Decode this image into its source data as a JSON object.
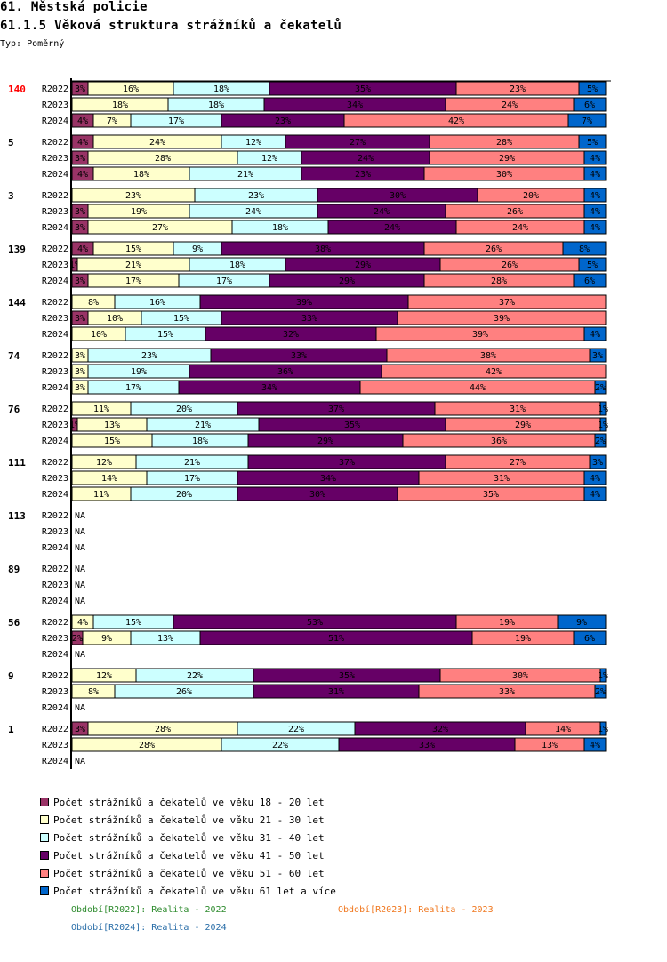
{
  "header": {
    "title": "61. Městská policie",
    "subtitle": "61.1.5 Věková struktura strážníků a čekatelů",
    "type_label": "Typ: Poměrný"
  },
  "periods": [
    {
      "code": "R2022",
      "label": "Období[R2022]: Realita - 2022",
      "color": "#2e8b2e"
    },
    {
      "code": "R2023",
      "label": "Období[R2023]: Realita - 2023",
      "color": "#f07820"
    },
    {
      "code": "R2024",
      "label": "Období[R2024]: Realita - 2024",
      "color": "#2a6ea8"
    }
  ],
  "chart_data": {
    "type": "bar",
    "orientation": "horizontal",
    "stacked": true,
    "normalized": true,
    "title": "61.1.5 Věková struktura strážníků a čekatelů",
    "xlim": [
      0,
      100
    ],
    "legend_position": "bottom-left",
    "series": [
      {
        "name": "Počet strážníků a čekatelů ve věku 18 - 20 let",
        "color": "#993366"
      },
      {
        "name": "Počet strážníků a čekatelů ve věku 21 - 30 let",
        "color": "#ffffcc"
      },
      {
        "name": "Počet strážníků a čekatelů ve věku 31 - 40 let",
        "color": "#ccffff"
      },
      {
        "name": "Počet strážníků a čekatelů ve věku 41 - 50 let",
        "color": "#660066"
      },
      {
        "name": "Počet strážníků a čekatelů ve věku 51 - 60 let",
        "color": "#ff8080"
      },
      {
        "name": "Počet strážníků a čekatelů ve věku 61 let a více",
        "color": "#0066cc"
      }
    ],
    "groups": [
      {
        "id": "140",
        "highlight": true,
        "rows": [
          {
            "period": "R2022",
            "values": [
              3,
              16,
              18,
              35,
              23,
              5
            ]
          },
          {
            "period": "R2023",
            "values": [
              0,
              18,
              18,
              34,
              24,
              6
            ]
          },
          {
            "period": "R2024",
            "values": [
              4,
              7,
              17,
              23,
              42,
              7
            ]
          }
        ]
      },
      {
        "id": "5",
        "rows": [
          {
            "period": "R2022",
            "values": [
              4,
              24,
              12,
              27,
              28,
              5
            ]
          },
          {
            "period": "R2023",
            "values": [
              3,
              28,
              12,
              24,
              29,
              4
            ]
          },
          {
            "period": "R2024",
            "values": [
              4,
              18,
              21,
              23,
              30,
              4
            ]
          }
        ]
      },
      {
        "id": "3",
        "rows": [
          {
            "period": "R2022",
            "values": [
              0,
              23,
              23,
              30,
              20,
              4
            ]
          },
          {
            "period": "R2023",
            "values": [
              3,
              19,
              24,
              24,
              26,
              4
            ]
          },
          {
            "period": "R2024",
            "values": [
              3,
              27,
              18,
              24,
              24,
              4
            ]
          }
        ]
      },
      {
        "id": "139",
        "rows": [
          {
            "period": "R2022",
            "values": [
              4,
              15,
              9,
              38,
              26,
              8
            ]
          },
          {
            "period": "R2023",
            "values": [
              1,
              21,
              18,
              29,
              26,
              5
            ]
          },
          {
            "period": "R2024",
            "values": [
              3,
              17,
              17,
              29,
              28,
              6
            ]
          }
        ]
      },
      {
        "id": "144",
        "rows": [
          {
            "period": "R2022",
            "values": [
              0,
              8,
              16,
              39,
              37,
              0
            ]
          },
          {
            "period": "R2023",
            "values": [
              3,
              10,
              15,
              33,
              39,
              0
            ]
          },
          {
            "period": "R2024",
            "values": [
              0,
              10,
              15,
              32,
              39,
              4
            ]
          }
        ]
      },
      {
        "id": "74",
        "rows": [
          {
            "period": "R2022",
            "values": [
              0,
              3,
              23,
              33,
              38,
              3
            ]
          },
          {
            "period": "R2023",
            "values": [
              0,
              3,
              19,
              36,
              42,
              0
            ]
          },
          {
            "period": "R2024",
            "values": [
              0,
              3,
              17,
              34,
              44,
              2
            ]
          }
        ]
      },
      {
        "id": "76",
        "rows": [
          {
            "period": "R2022",
            "values": [
              0,
              11,
              20,
              37,
              31,
              1
            ]
          },
          {
            "period": "R2023",
            "values": [
              1,
              13,
              21,
              35,
              29,
              1
            ]
          },
          {
            "period": "R2024",
            "values": [
              0,
              15,
              18,
              29,
              36,
              2
            ]
          }
        ]
      },
      {
        "id": "111",
        "rows": [
          {
            "period": "R2022",
            "values": [
              0,
              12,
              21,
              37,
              27,
              3
            ]
          },
          {
            "period": "R2023",
            "values": [
              0,
              14,
              17,
              34,
              31,
              4
            ]
          },
          {
            "period": "R2024",
            "values": [
              0,
              11,
              20,
              30,
              35,
              4
            ]
          }
        ]
      },
      {
        "id": "113",
        "rows": [
          {
            "period": "R2022",
            "values": null
          },
          {
            "period": "R2023",
            "values": null
          },
          {
            "period": "R2024",
            "values": null
          }
        ]
      },
      {
        "id": "89",
        "rows": [
          {
            "period": "R2022",
            "values": null
          },
          {
            "period": "R2023",
            "values": null
          },
          {
            "period": "R2024",
            "values": null
          }
        ]
      },
      {
        "id": "56",
        "rows": [
          {
            "period": "R2022",
            "values": [
              0,
              4,
              15,
              53,
              19,
              9
            ]
          },
          {
            "period": "R2023",
            "values": [
              2,
              9,
              13,
              51,
              19,
              6
            ]
          },
          {
            "period": "R2024",
            "values": null
          }
        ]
      },
      {
        "id": "9",
        "rows": [
          {
            "period": "R2022",
            "values": [
              0,
              12,
              22,
              35,
              30,
              1
            ]
          },
          {
            "period": "R2023",
            "values": [
              0,
              8,
              26,
              31,
              33,
              2
            ]
          },
          {
            "period": "R2024",
            "values": null
          }
        ]
      },
      {
        "id": "1",
        "rows": [
          {
            "period": "R2022",
            "values": [
              3,
              28,
              22,
              32,
              14,
              1
            ]
          },
          {
            "period": "R2023",
            "values": [
              0,
              28,
              22,
              33,
              13,
              4
            ]
          },
          {
            "period": "R2024",
            "values": null
          }
        ]
      }
    ],
    "na_label": "NA",
    "value_suffix": "%"
  }
}
